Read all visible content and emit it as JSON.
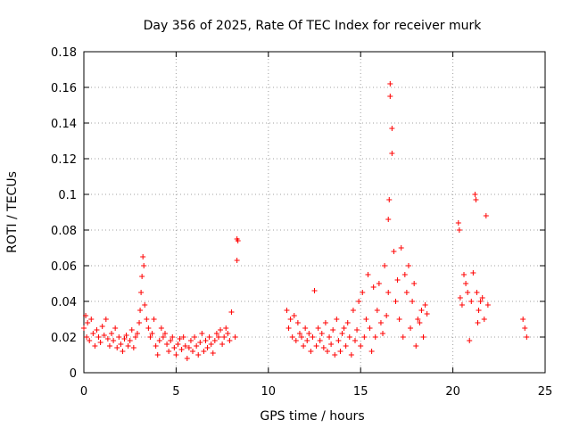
{
  "chart_data": {
    "type": "scatter",
    "title": "Day 356 of 2025, Rate Of TEC Index for receiver murk",
    "xlabel": "GPS time / hours",
    "ylabel": "ROTI / TECUs",
    "xlim": [
      0,
      25
    ],
    "ylim": [
      0,
      0.18
    ],
    "xticks": [
      0,
      5,
      10,
      15,
      20,
      25
    ],
    "yticks": [
      0,
      0.02,
      0.04,
      0.06,
      0.08,
      0.1,
      0.12,
      0.14,
      0.16,
      0.18
    ],
    "xtick_labels": [
      "0",
      "5",
      "10",
      "15",
      "20",
      "25"
    ],
    "ytick_labels": [
      "0",
      "0.02",
      "0.04",
      "0.06",
      "0.08",
      "0.1",
      "0.12",
      "0.14",
      "0.16",
      "0.18"
    ],
    "grid": true,
    "marker": "plus",
    "marker_color": "#ff0000",
    "series": [
      {
        "x": [
          0.0,
          0.1,
          0.15,
          0.2,
          0.3,
          0.4,
          0.5,
          0.6,
          0.7,
          0.8,
          0.9,
          1.0,
          1.1,
          1.2,
          1.3,
          1.4,
          1.5,
          1.6,
          1.7,
          1.8,
          1.9,
          2.0,
          2.1,
          2.2,
          2.3,
          2.4,
          2.5,
          2.6,
          2.7,
          2.8,
          2.9,
          3.0,
          3.05,
          3.1,
          3.15,
          3.2,
          3.25,
          3.3,
          3.4,
          3.5,
          3.6,
          3.7,
          3.8,
          3.9,
          4.0,
          4.1,
          4.2,
          4.3,
          4.4,
          4.5,
          4.6,
          4.7,
          4.8,
          4.9,
          5.0,
          5.1,
          5.2,
          5.3,
          5.4,
          5.5,
          5.6,
          5.7,
          5.8,
          5.9,
          6.0,
          6.1,
          6.2,
          6.3,
          6.4,
          6.5,
          6.6,
          6.7,
          6.8,
          6.9,
          7.0,
          7.1,
          7.2,
          7.3,
          7.4,
          7.5,
          7.6,
          7.7,
          7.8,
          7.9,
          8.0,
          8.2,
          8.3,
          8.35,
          8.3,
          11.0,
          11.1,
          11.2,
          11.3,
          11.4,
          11.5,
          11.6,
          11.7,
          11.8,
          11.9,
          12.0,
          12.1,
          12.2,
          12.3,
          12.4,
          12.5,
          12.6,
          12.7,
          12.8,
          12.9,
          13.0,
          13.1,
          13.2,
          13.3,
          13.4,
          13.5,
          13.6,
          13.7,
          13.8,
          13.9,
          14.0,
          14.1,
          14.2,
          14.3,
          14.4,
          14.5,
          14.6,
          14.7,
          14.8,
          14.9,
          15.0,
          15.1,
          15.2,
          15.3,
          15.4,
          15.5,
          15.6,
          15.7,
          15.8,
          15.9,
          16.0,
          16.1,
          16.2,
          16.3,
          16.4,
          16.5,
          16.5,
          16.55,
          16.6,
          16.6,
          16.7,
          16.7,
          16.8,
          16.9,
          17.0,
          17.1,
          17.2,
          17.3,
          17.4,
          17.5,
          17.6,
          17.7,
          17.8,
          17.9,
          18.0,
          18.1,
          18.2,
          18.3,
          18.4,
          18.5,
          18.6,
          20.3,
          20.35,
          20.4,
          20.5,
          20.6,
          20.7,
          20.8,
          20.9,
          21.0,
          21.1,
          21.2,
          21.25,
          21.3,
          21.35,
          21.4,
          21.5,
          21.6,
          21.7,
          21.8,
          21.9,
          23.8,
          23.9,
          24.0
        ],
        "y": [
          0.025,
          0.032,
          0.02,
          0.028,
          0.018,
          0.03,
          0.022,
          0.015,
          0.024,
          0.02,
          0.017,
          0.026,
          0.021,
          0.03,
          0.019,
          0.015,
          0.022,
          0.018,
          0.025,
          0.014,
          0.02,
          0.016,
          0.012,
          0.019,
          0.021,
          0.015,
          0.018,
          0.024,
          0.014,
          0.02,
          0.022,
          0.028,
          0.035,
          0.045,
          0.054,
          0.065,
          0.06,
          0.038,
          0.03,
          0.025,
          0.02,
          0.022,
          0.03,
          0.015,
          0.01,
          0.018,
          0.025,
          0.02,
          0.022,
          0.016,
          0.012,
          0.018,
          0.02,
          0.014,
          0.01,
          0.016,
          0.019,
          0.013,
          0.02,
          0.015,
          0.008,
          0.014,
          0.018,
          0.012,
          0.02,
          0.015,
          0.01,
          0.017,
          0.022,
          0.012,
          0.018,
          0.014,
          0.02,
          0.016,
          0.011,
          0.018,
          0.022,
          0.02,
          0.024,
          0.016,
          0.02,
          0.025,
          0.022,
          0.018,
          0.034,
          0.02,
          0.075,
          0.074,
          0.063,
          0.035,
          0.025,
          0.03,
          0.02,
          0.032,
          0.018,
          0.028,
          0.022,
          0.02,
          0.015,
          0.025,
          0.018,
          0.022,
          0.012,
          0.02,
          0.046,
          0.015,
          0.025,
          0.018,
          0.022,
          0.014,
          0.028,
          0.012,
          0.02,
          0.016,
          0.024,
          0.01,
          0.03,
          0.018,
          0.012,
          0.022,
          0.025,
          0.015,
          0.028,
          0.02,
          0.01,
          0.035,
          0.018,
          0.024,
          0.04,
          0.015,
          0.045,
          0.02,
          0.03,
          0.055,
          0.025,
          0.012,
          0.048,
          0.02,
          0.035,
          0.05,
          0.028,
          0.022,
          0.06,
          0.032,
          0.045,
          0.086,
          0.097,
          0.155,
          0.162,
          0.137,
          0.123,
          0.068,
          0.04,
          0.052,
          0.03,
          0.07,
          0.02,
          0.055,
          0.045,
          0.06,
          0.025,
          0.04,
          0.05,
          0.015,
          0.03,
          0.028,
          0.035,
          0.02,
          0.038,
          0.033,
          0.084,
          0.08,
          0.042,
          0.038,
          0.055,
          0.05,
          0.045,
          0.018,
          0.04,
          0.056,
          0.1,
          0.097,
          0.045,
          0.028,
          0.035,
          0.04,
          0.042,
          0.03,
          0.088,
          0.038,
          0.03,
          0.025,
          0.02
        ]
      }
    ]
  }
}
